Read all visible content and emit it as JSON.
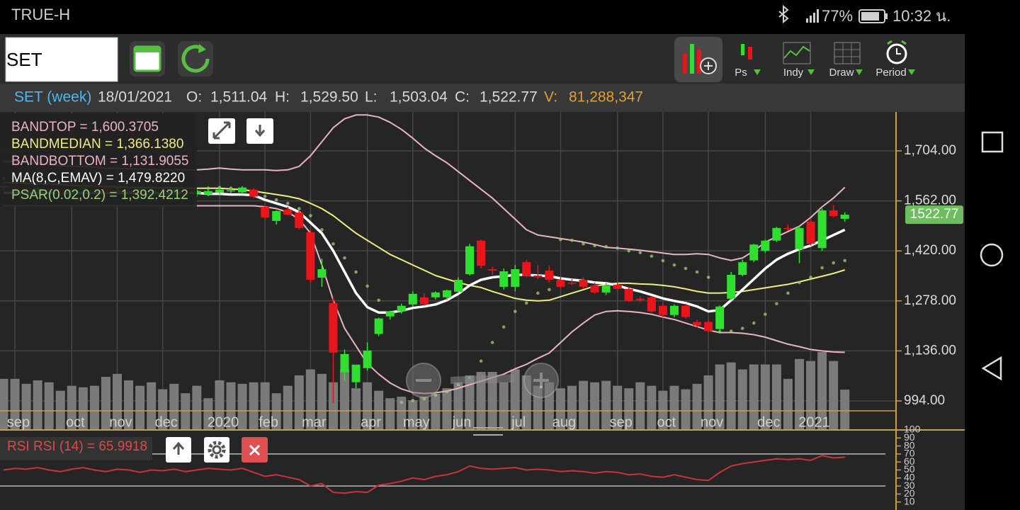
{
  "status": {
    "carrier": "TRUE-H",
    "battery": "77%",
    "time": "10:32 น."
  },
  "toolbar": {
    "symbol": "SET",
    "menus": [
      "Ps",
      "Indy",
      "Draw",
      "Period"
    ]
  },
  "header": [
    "SET (week)",
    "18/01/2021",
    "O:",
    "1,511.04",
    "H:",
    "1,529.50",
    "L:",
    "1,503.04",
    "C:",
    "1,522.77",
    "V:",
    "81,288,347"
  ],
  "chart_data": [
    {
      "type": "candlestick",
      "categories": [
        null,
        "sep",
        null,
        null,
        null,
        null,
        "oct",
        null,
        null,
        null,
        "nov",
        null,
        null,
        null,
        "dec",
        null,
        null,
        null,
        null,
        "2020",
        null,
        null,
        null,
        "feb",
        null,
        null,
        null,
        "mar",
        null,
        null,
        null,
        null,
        "apr",
        null,
        null,
        null,
        "may",
        null,
        null,
        null,
        "jun",
        null,
        null,
        null,
        null,
        "jul",
        null,
        null,
        null,
        "aug",
        null,
        null,
        null,
        null,
        "sep",
        null,
        null,
        null,
        "oct",
        null,
        null,
        null,
        "nov",
        null,
        null,
        null,
        null,
        "dec",
        null,
        null,
        null,
        "2021",
        null,
        null,
        null
      ],
      "open": [
        1600,
        1605,
        1598,
        1590,
        1600,
        1595,
        1580,
        1595,
        1605,
        1600,
        1585,
        1592,
        1588,
        1578,
        1590,
        1584,
        1590,
        1582,
        1580,
        1585,
        1590,
        1586,
        1594,
        1545,
        1505,
        1537,
        1529,
        1473,
        1344,
        1272,
        1075,
        1047,
        1087,
        1184,
        1234,
        1248,
        1268,
        1288,
        1288,
        1288,
        1304,
        1354,
        1449,
        1368,
        1318,
        1318,
        1388,
        1350,
        1364,
        1338,
        1330,
        1338,
        1322,
        1302,
        1324,
        1312,
        1284,
        1288,
        1264,
        1238,
        1264,
        1218,
        1218,
        1198,
        1284,
        1352,
        1393,
        1420,
        1449,
        1485,
        1425,
        1503,
        1428,
        1535,
        1511.04
      ],
      "high": [
        1615,
        1620,
        1610,
        1605,
        1612,
        1605,
        1600,
        1610,
        1618,
        1610,
        1598,
        1605,
        1598,
        1595,
        1600,
        1596,
        1600,
        1594,
        1595,
        1600,
        1600,
        1604,
        1598,
        1550,
        1535,
        1545,
        1535,
        1480,
        1398,
        1290,
        1140,
        1095,
        1160,
        1230,
        1250,
        1270,
        1305,
        1300,
        1305,
        1310,
        1345,
        1440,
        1452,
        1375,
        1370,
        1380,
        1395,
        1380,
        1378,
        1348,
        1340,
        1345,
        1330,
        1330,
        1332,
        1318,
        1290,
        1292,
        1270,
        1268,
        1270,
        1225,
        1225,
        1265,
        1360,
        1395,
        1440,
        1452,
        1488,
        1495,
        1490,
        1510,
        1540,
        1550,
        1529.5
      ],
      "low": [
        1590,
        1595,
        1585,
        1580,
        1590,
        1575,
        1572,
        1588,
        1596,
        1580,
        1575,
        1585,
        1572,
        1570,
        1580,
        1575,
        1578,
        1574,
        1575,
        1580,
        1584,
        1582,
        1570,
        1510,
        1495,
        1520,
        1480,
        1330,
        1318,
        987,
        1050,
        1030,
        1080,
        1178,
        1225,
        1242,
        1262,
        1265,
        1282,
        1280,
        1300,
        1350,
        1370,
        1352,
        1310,
        1305,
        1345,
        1340,
        1330,
        1315,
        1322,
        1312,
        1298,
        1295,
        1308,
        1275,
        1275,
        1245,
        1232,
        1232,
        1228,
        1202,
        1188,
        1192,
        1280,
        1348,
        1388,
        1415,
        1445,
        1478,
        1385,
        1435,
        1420,
        1515,
        1503.04
      ],
      "close": [
        1605,
        1598,
        1590,
        1600,
        1595,
        1580,
        1595,
        1605,
        1600,
        1585,
        1592,
        1588,
        1578,
        1590,
        1584,
        1590,
        1582,
        1590,
        1590,
        1594,
        1592,
        1600,
        1574,
        1515,
        1533,
        1523,
        1485,
        1338,
        1368,
        1131,
        1127,
        1097,
        1137,
        1228,
        1248,
        1264,
        1298,
        1268,
        1302,
        1308,
        1338,
        1433,
        1378,
        1364,
        1362,
        1368,
        1348,
        1345,
        1338,
        1318,
        1328,
        1318,
        1302,
        1322,
        1312,
        1278,
        1280,
        1248,
        1238,
        1264,
        1232,
        1208,
        1192,
        1262,
        1352,
        1388,
        1438,
        1449,
        1485,
        1482,
        1485,
        1440,
        1535,
        1519,
        1522.77
      ],
      "volume": [
        103000000,
        103000000,
        93000000,
        100000000,
        96000000,
        79000000,
        89000000,
        86000000,
        89000000,
        107000000,
        113000000,
        100000000,
        89000000,
        96000000,
        82000000,
        93000000,
        74000000,
        89000000,
        64000000,
        100000000,
        96000000,
        93000000,
        96000000,
        96000000,
        74000000,
        89000000,
        110000000,
        122000000,
        113000000,
        96000000,
        122000000,
        84000000,
        96000000,
        79000000,
        64000000,
        67000000,
        60000000,
        67000000,
        73000000,
        84000000,
        96000000,
        110000000,
        117000000,
        117000000,
        96000000,
        122000000,
        110000000,
        89000000,
        96000000,
        84000000,
        89000000,
        99000000,
        96000000,
        99000000,
        89000000,
        84000000,
        96000000,
        89000000,
        79000000,
        89000000,
        82000000,
        93000000,
        110000000,
        132000000,
        136000000,
        122000000,
        132000000,
        132000000,
        132000000,
        103000000,
        143000000,
        139000000,
        157000000,
        139000000,
        81288347
      ],
      "up_color": "#2fe02f",
      "down_color": "#e8161b",
      "volume_color": "#7a7a7a",
      "series": [
        {
          "name": "BANDTOP = 1,600.3705",
          "color": "#e8b4c4",
          "values": [
            1675,
            1673,
            1670,
            1668,
            1665,
            1662,
            1660,
            1660,
            1658,
            1655,
            1654,
            1653,
            1652,
            1651,
            1650,
            1650,
            1650,
            1650,
            1652,
            1655,
            1652,
            1650,
            1650,
            1650,
            1648,
            1650,
            1660,
            1690,
            1730,
            1770,
            1795,
            1806,
            1806,
            1800,
            1785,
            1765,
            1740,
            1712,
            1690,
            1670,
            1645,
            1620,
            1595,
            1570,
            1540,
            1510,
            1480,
            1465,
            1460,
            1455,
            1450,
            1445,
            1438,
            1430,
            1428,
            1425,
            1422,
            1418,
            1414,
            1410,
            1410,
            1412,
            1410,
            1400,
            1393,
            1400,
            1420,
            1445,
            1460,
            1475,
            1490,
            1515,
            1545,
            1570,
            1600.3705
          ]
        },
        {
          "name": "BANDMEDIAN = 1,366.1380",
          "color": "#eeee80",
          "values": [
            1614,
            1613,
            1612,
            1611,
            1610,
            1608,
            1606,
            1605,
            1604,
            1603,
            1602,
            1601,
            1600,
            1600,
            1599,
            1599,
            1598,
            1598,
            1598,
            1598,
            1596,
            1594,
            1590,
            1585,
            1580,
            1575,
            1568,
            1555,
            1540,
            1520,
            1495,
            1470,
            1450,
            1430,
            1410,
            1395,
            1380,
            1365,
            1350,
            1340,
            1330,
            1322,
            1316,
            1305,
            1295,
            1285,
            1280,
            1278,
            1280,
            1290,
            1300,
            1310,
            1320,
            1325,
            1328,
            1328,
            1326,
            1325,
            1322,
            1318,
            1312,
            1305,
            1300,
            1300,
            1302,
            1305,
            1310,
            1315,
            1320,
            1325,
            1332,
            1340,
            1348,
            1356,
            1366.138
          ]
        },
        {
          "name": "BANDBOTTOM = 1,131.9055",
          "color": "#e8b4c4",
          "values": [
            1548,
            1548,
            1548,
            1548,
            1548,
            1548,
            1548,
            1548,
            1548,
            1548,
            1548,
            1548,
            1548,
            1548,
            1548,
            1548,
            1548,
            1548,
            1548,
            1548,
            1548,
            1548,
            1548,
            1545,
            1540,
            1530,
            1510,
            1470,
            1380,
            1280,
            1200,
            1150,
            1100,
            1070,
            1045,
            1028,
            1018,
            1015,
            1017,
            1022,
            1030,
            1040,
            1050,
            1060,
            1070,
            1085,
            1098,
            1115,
            1130,
            1160,
            1190,
            1215,
            1238,
            1248,
            1250,
            1248,
            1245,
            1240,
            1232,
            1225,
            1215,
            1205,
            1195,
            1188,
            1188,
            1186,
            1182,
            1175,
            1165,
            1155,
            1148,
            1140,
            1136,
            1133,
            1131.9055
          ]
        },
        {
          "name": "MA(8,C,EMAV) = 1,479.8220",
          "color": "#ffffff",
          "values": [
            1585,
            1585,
            1585,
            1585,
            1585,
            1585,
            1585,
            1585,
            1585,
            1585,
            1585,
            1585,
            1585,
            1585,
            1585,
            1585,
            1585,
            1585,
            1582,
            1582,
            1580,
            1580,
            1578,
            1565,
            1555,
            1545,
            1530,
            1500,
            1470,
            1420,
            1360,
            1300,
            1260,
            1245,
            1245,
            1250,
            1258,
            1262,
            1268,
            1280,
            1298,
            1322,
            1338,
            1345,
            1348,
            1352,
            1352,
            1350,
            1348,
            1342,
            1338,
            1335,
            1330,
            1328,
            1322,
            1312,
            1305,
            1295,
            1285,
            1278,
            1272,
            1262,
            1248,
            1252,
            1280,
            1310,
            1340,
            1370,
            1395,
            1412,
            1425,
            1435,
            1450,
            1465,
            1479.822
          ]
        },
        {
          "name": "PSAR(0.02,0.2) = 1,392.4212",
          "color": "#9ad07a",
          "style": "dots",
          "values": [
            1625,
            1622,
            1620,
            1618,
            1615,
            1612,
            1610,
            1608,
            1605,
            1603,
            1600,
            1598,
            1596,
            1594,
            1592,
            1590,
            1590,
            1588,
            1598,
            1600,
            1598,
            1592,
            1585,
            1575,
            1565,
            1555,
            1540,
            1520,
            1480,
            1440,
            1400,
            1360,
            1320,
            1280,
            1240,
            990,
            995,
            1000,
            1010,
            1020,
            1040,
            1060,
            1107,
            1160,
            1204,
            1248,
            1272,
            1300,
            1310,
            1452,
            1450,
            1440,
            1435,
            1432,
            1428,
            1420,
            1415,
            1405,
            1392,
            1380,
            1370,
            1360,
            1345,
            1190,
            1192,
            1200,
            1215,
            1240,
            1270,
            1300,
            1330,
            1345,
            1372,
            1386,
            1392.4212
          ]
        }
      ],
      "last_label": "1522.77",
      "ylim": [
        911.5,
        1814.6
      ],
      "yticks": [
        {
          "value": 994,
          "label": "994.00"
        },
        {
          "value": 1136,
          "label": "1,136.00"
        },
        {
          "value": 1278,
          "label": "1,278.00"
        },
        {
          "value": 1420,
          "label": "1,420.00"
        },
        {
          "value": 1562,
          "label": "1,562.00"
        },
        {
          "value": 1704,
          "label": "1,704.00"
        }
      ],
      "grid": true
    },
    {
      "type": "line",
      "title": "RSI RSI (14) = 65.9918",
      "color": "#c8343a",
      "values": [
        50,
        52,
        51,
        53,
        50,
        48,
        51,
        53,
        50,
        48,
        51,
        50,
        47,
        50,
        49,
        51,
        48,
        50,
        52,
        51,
        50,
        52,
        47,
        42,
        44,
        41,
        38,
        30,
        33,
        22,
        21,
        23,
        22,
        31,
        33,
        36,
        40,
        38,
        42,
        44,
        48,
        55,
        52,
        51,
        52,
        53,
        50,
        51,
        50,
        48,
        49,
        48,
        46,
        48,
        47,
        44,
        45,
        42,
        41,
        44,
        41,
        38,
        37,
        47,
        55,
        58,
        60,
        62,
        64,
        63,
        64,
        62,
        68,
        65,
        65.9918
      ],
      "ylim": [
        0,
        100
      ],
      "yticks": [
        10,
        20,
        30,
        40,
        50,
        60,
        70,
        80,
        90,
        100
      ],
      "levels": [
        70,
        30
      ]
    }
  ]
}
